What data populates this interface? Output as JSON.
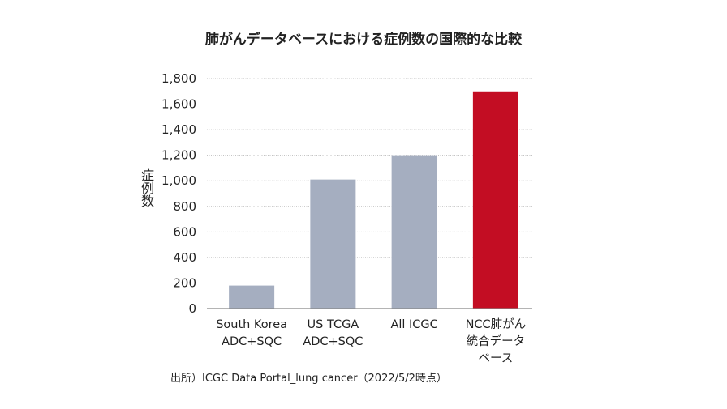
{
  "chart_data": {
    "type": "bar",
    "title": "肺がんデータベースにおける症例数の国際的な比較",
    "xlabel": "",
    "ylabel": "症例数",
    "categories": [
      [
        "South Korea",
        "ADC+SQC"
      ],
      [
        "US TCGA",
        "ADC+SQC"
      ],
      [
        "All ICGC"
      ],
      [
        "NCC肺がん",
        "統合データ",
        "ベース"
      ]
    ],
    "values": [
      180,
      1010,
      1200,
      1700
    ],
    "bar_colors": [
      "#a5aec0",
      "#a5aec0",
      "#a5aec0",
      "#c30d23"
    ],
    "ylim": [
      0,
      1800
    ],
    "yticks": [
      "0",
      "200",
      "400",
      "600",
      "800",
      "1,000",
      "1,200",
      "1,400",
      "1,600",
      "1,800"
    ],
    "grid": true,
    "legend": "none"
  },
  "source": "出所）ICGC Data Portal_lung cancer（2022/5/2時点）"
}
